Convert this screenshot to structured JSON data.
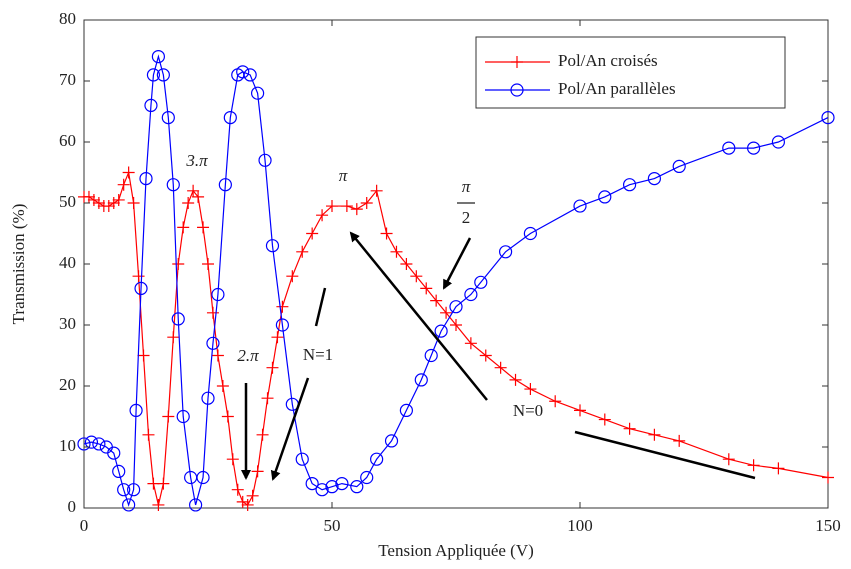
{
  "chart_data": {
    "type": "line",
    "xlabel": "Tension Appliquée (V)",
    "ylabel": "Transmission (%)",
    "xlim": [
      0,
      150
    ],
    "xticks": [
      0,
      50,
      100,
      150
    ],
    "ylim": [
      0,
      80
    ],
    "yticks": [
      0,
      10,
      20,
      30,
      40,
      50,
      60,
      70,
      80
    ],
    "grid": false,
    "legend": "upper right",
    "annotations": [
      "3.π",
      "π",
      "2.π",
      "N=1",
      "N=0"
    ],
    "fraction_annotation": {
      "numerator": "π",
      "denominator": "2"
    },
    "series": [
      {
        "name": "Pol/An croisés",
        "color": "#ff0000",
        "marker": "plus",
        "x": [
          0,
          1,
          2,
          3,
          4,
          5,
          6,
          7,
          8,
          9,
          10,
          11,
          12,
          13,
          14,
          15,
          16,
          17,
          18,
          19,
          20,
          21,
          22,
          23,
          24,
          25,
          26,
          27,
          28,
          29,
          30,
          31,
          32,
          33,
          34,
          35,
          36,
          37,
          38,
          39,
          40,
          42,
          44,
          46,
          48,
          50,
          53,
          55,
          57,
          59,
          61,
          63,
          65,
          67,
          69,
          71,
          73,
          75,
          78,
          81,
          84,
          87,
          90,
          95,
          100,
          105,
          110,
          115,
          120,
          130,
          135,
          140,
          150
        ],
        "values": [
          51,
          51,
          50.5,
          50,
          49.5,
          49.5,
          50,
          50.5,
          53,
          55,
          50,
          38,
          25,
          12,
          4,
          0.5,
          4,
          15,
          28,
          40,
          46,
          50,
          52,
          51,
          46,
          40,
          32,
          25,
          20,
          15,
          8,
          3,
          1,
          0.5,
          2,
          6,
          12,
          18,
          23,
          28,
          33,
          38,
          42,
          45,
          48,
          49.5,
          49.5,
          49,
          50,
          52,
          45,
          42,
          40,
          38,
          36,
          34,
          32,
          30,
          27,
          25,
          23,
          21,
          19.5,
          17.5,
          16,
          14.5,
          13,
          12,
          11,
          8,
          7,
          6.5,
          5
        ]
      },
      {
        "name": "Pol/An parallèles",
        "color": "#0000ff",
        "marker": "circle",
        "x": [
          0,
          1.5,
          3,
          4.5,
          6,
          7,
          8,
          9,
          10,
          10.5,
          11.5,
          12.5,
          13.5,
          14,
          15,
          16,
          17,
          18,
          19,
          20,
          21.5,
          22.5,
          24,
          25,
          26,
          27,
          28.5,
          29.5,
          31,
          32,
          33.5,
          35,
          36.5,
          38,
          40,
          42,
          44,
          46,
          48,
          50,
          52,
          55,
          57,
          59,
          62,
          65,
          68,
          70,
          72,
          75,
          78,
          80,
          85,
          90,
          100,
          105,
          110,
          115,
          120,
          130,
          135,
          140,
          150
        ],
        "values": [
          10.5,
          10.8,
          10.5,
          10,
          9,
          6,
          3,
          0.5,
          3,
          16,
          36,
          54,
          66,
          71,
          74,
          71,
          64,
          53,
          31,
          15,
          5,
          0.5,
          5,
          18,
          27,
          35,
          53,
          64,
          71,
          71.5,
          71,
          68,
          57,
          43,
          30,
          17,
          8,
          4,
          3,
          3.5,
          4,
          3.5,
          5,
          8,
          11,
          16,
          21,
          25,
          29,
          33,
          35,
          37,
          42,
          45,
          49.5,
          51,
          53,
          54,
          56,
          59,
          59,
          60,
          64
        ]
      }
    ]
  }
}
